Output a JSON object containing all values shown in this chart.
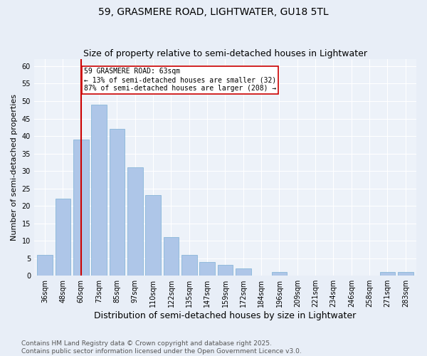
{
  "title": "59, GRASMERE ROAD, LIGHTWATER, GU18 5TL",
  "subtitle": "Size of property relative to semi-detached houses in Lightwater",
  "xlabel": "Distribution of semi-detached houses by size in Lightwater",
  "ylabel": "Number of semi-detached properties",
  "categories": [
    "36sqm",
    "48sqm",
    "60sqm",
    "73sqm",
    "85sqm",
    "97sqm",
    "110sqm",
    "122sqm",
    "135sqm",
    "147sqm",
    "159sqm",
    "172sqm",
    "184sqm",
    "196sqm",
    "209sqm",
    "221sqm",
    "234sqm",
    "246sqm",
    "258sqm",
    "271sqm",
    "283sqm"
  ],
  "values": [
    6,
    22,
    39,
    49,
    42,
    31,
    23,
    11,
    6,
    4,
    3,
    2,
    0,
    1,
    0,
    0,
    0,
    0,
    0,
    1,
    1
  ],
  "bar_color": "#aec6e8",
  "bar_edge_color": "#7bafd4",
  "ylim": [
    0,
    62
  ],
  "yticks": [
    0,
    5,
    10,
    15,
    20,
    25,
    30,
    35,
    40,
    45,
    50,
    55,
    60
  ],
  "property_bin_index": 2,
  "annotation_title": "59 GRASMERE ROAD: 63sqm",
  "annotation_line1": "← 13% of semi-detached houses are smaller (32)",
  "annotation_line2": "87% of semi-detached houses are larger (208) →",
  "vline_color": "#cc0000",
  "annotation_box_edge": "#cc0000",
  "footer_line1": "Contains HM Land Registry data © Crown copyright and database right 2025.",
  "footer_line2": "Contains public sector information licensed under the Open Government Licence v3.0.",
  "bg_color": "#e8eef7",
  "plot_bg_color": "#edf2f9",
  "title_fontsize": 10,
  "subtitle_fontsize": 9,
  "xlabel_fontsize": 9,
  "ylabel_fontsize": 8,
  "tick_fontsize": 7,
  "annotation_fontsize": 7,
  "footer_fontsize": 6.5
}
